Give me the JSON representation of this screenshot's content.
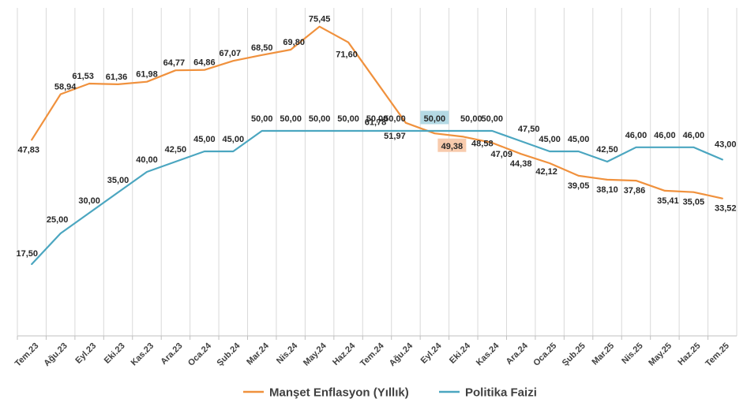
{
  "chart_data": {
    "type": "line",
    "title": "",
    "xlabel": "",
    "ylabel": "",
    "ylim": [
      0,
      80
    ],
    "grid": "vertical",
    "legend_position": "bottom",
    "categories": [
      "Tem.23",
      "Ağu.23",
      "Eyl.23",
      "Eki.23",
      "Kas.23",
      "Ara.23",
      "Oca.24",
      "Şub.24",
      "Mar.24",
      "Nis.24",
      "May.24",
      "Haz.24",
      "Tem.24",
      "Ağu.24",
      "Eyl.24",
      "Eki.24",
      "Kas.24",
      "Ara.24",
      "Oca.25",
      "Şub.25",
      "Mar.25",
      "Nis.25",
      "May.25",
      "Haz.25",
      "Tem.25"
    ],
    "series": [
      {
        "name": "Manşet Enflasyon (Yıllık)",
        "color": "#F0913D",
        "values": [
          47.83,
          58.94,
          61.53,
          61.36,
          61.98,
          64.77,
          64.86,
          67.07,
          68.5,
          69.8,
          75.45,
          71.6,
          61.78,
          51.97,
          49.38,
          48.58,
          47.09,
          44.38,
          42.12,
          39.05,
          38.1,
          37.86,
          35.41,
          35.05,
          33.52
        ],
        "labels": [
          "47,83",
          "58,94",
          "61,53",
          "61,36",
          "61,98",
          "64,77",
          "64,86",
          "67,07",
          "68,50",
          "69,80",
          "75,45",
          "71,60",
          "61,78",
          "51,97",
          "49,38",
          "48,58",
          "47,09",
          "44,38",
          "42,12",
          "39,05",
          "38,10",
          "37,86",
          "35,41",
          "35,05",
          "33,52"
        ],
        "highlight_index": 14,
        "highlight_color": "#F8CBAD"
      },
      {
        "name": "Politika Faizi",
        "color": "#4BA6C0",
        "values": [
          17.5,
          25.0,
          30.0,
          35.0,
          40.0,
          42.5,
          45.0,
          45.0,
          50.0,
          50.0,
          50.0,
          50.0,
          50.0,
          50.0,
          50.0,
          50.0,
          50.0,
          47.5,
          45.0,
          45.0,
          42.5,
          46.0,
          46.0,
          46.0,
          43.0
        ],
        "labels": [
          "17,50",
          "25,00",
          "30,00",
          "35,00",
          "40,00",
          "42,50",
          "45,00",
          "45,00",
          "50,00",
          "50,00",
          "50,00",
          "50,00",
          "50,00",
          "50,00",
          "50,00",
          "50,00",
          "50,00",
          "47,50",
          "45,00",
          "45,00",
          "42,50",
          "46,00",
          "46,00",
          "46,00",
          "43,00"
        ],
        "highlight_index": 14,
        "highlight_color": "#B4D9E4"
      }
    ]
  }
}
